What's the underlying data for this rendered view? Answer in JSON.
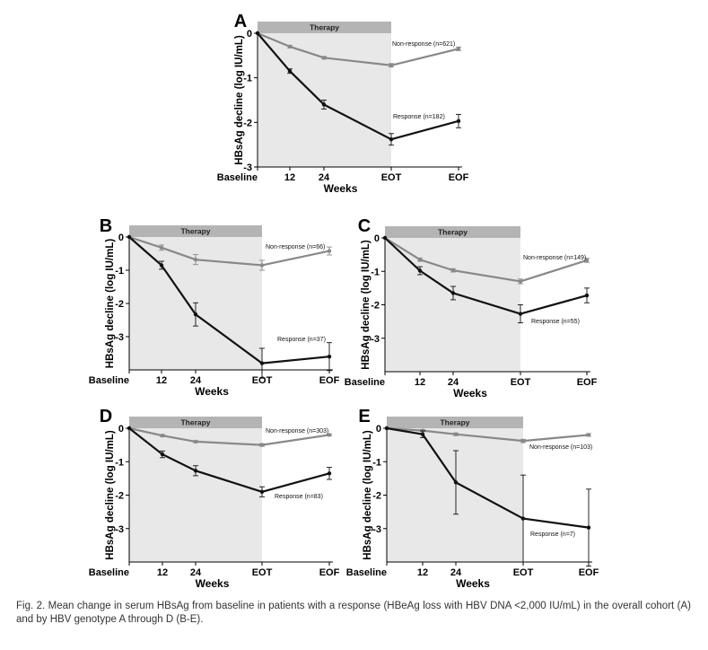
{
  "caption": "Fig. 2. Mean change in serum HBsAg from baseline in patients with a response (HBeAg loss with HBV DNA <2,000 IU/mL) in the overall cohort (A) and by HBV genotype A through D (B-E).",
  "colors": {
    "response": "#111111",
    "nonresponse": "#888888",
    "therapy_band": "#e8e8e8",
    "therapy_header": "#b4b4b4"
  },
  "chart_data": [
    {
      "type": "line",
      "panel": "A",
      "therapy_label": "Therapy",
      "x": [
        "Baseline",
        "12",
        "24",
        "EOT",
        "EOF"
      ],
      "xlabel": "Weeks",
      "ylabel": "HBsAg decline (log IU/mL)",
      "ylim": [
        -3,
        0
      ],
      "yticks": [
        "0",
        "-1",
        "-2",
        "-3"
      ],
      "series": [
        {
          "name": "Non-response (n=621)",
          "values": [
            0,
            -0.3,
            -0.55,
            -0.72,
            -0.35
          ],
          "err": [
            0,
            0.03,
            0.03,
            0.04,
            0.04
          ]
        },
        {
          "name": "Response (n=182)",
          "values": [
            0,
            -0.85,
            -1.6,
            -2.38,
            -1.97
          ],
          "err": [
            0,
            0.05,
            0.1,
            0.13,
            0.15
          ]
        }
      ]
    },
    {
      "type": "line",
      "panel": "B",
      "therapy_label": "Therapy",
      "x": [
        "Baseline",
        "12",
        "24",
        "EOT",
        "EOF"
      ],
      "xlabel": "Weeks",
      "ylabel": "HBsAg decline (log IU/mL)",
      "ylim": [
        -4,
        0
      ],
      "yticks": [
        "0",
        "-1",
        "-2",
        "-3"
      ],
      "series": [
        {
          "name": "Non-response (n=66)",
          "values": [
            0,
            -0.32,
            -0.68,
            -0.85,
            -0.42
          ],
          "err": [
            0,
            0.08,
            0.15,
            0.15,
            0.12
          ]
        },
        {
          "name": "Response (n=37)",
          "values": [
            0,
            -0.85,
            -2.33,
            -3.8,
            -3.6
          ],
          "err": [
            0,
            0.12,
            0.35,
            0.45,
            0.42
          ]
        }
      ]
    },
    {
      "type": "line",
      "panel": "C",
      "therapy_label": "Therapy",
      "x": [
        "Baseline",
        "12",
        "24",
        "EOT",
        "EOF"
      ],
      "xlabel": "Weeks",
      "ylabel": "HBsAg decline (log IU/mL)",
      "ylim": [
        -4,
        0
      ],
      "yticks": [
        "0",
        "-1",
        "-2",
        "-3"
      ],
      "series": [
        {
          "name": "Non-response (n=149)",
          "values": [
            0,
            -0.65,
            -0.97,
            -1.3,
            -0.67
          ],
          "err": [
            0,
            0.05,
            0.05,
            0.07,
            0.06
          ]
        },
        {
          "name": "Response (n=55)",
          "values": [
            0,
            -0.98,
            -1.65,
            -2.27,
            -1.72
          ],
          "err": [
            0,
            0.12,
            0.2,
            0.27,
            0.22
          ]
        }
      ]
    },
    {
      "type": "line",
      "panel": "D",
      "therapy_label": "Therapy",
      "x": [
        "Baseline",
        "12",
        "24",
        "EOT",
        "EOF"
      ],
      "xlabel": "Weeks",
      "ylabel": "HBsAg decline (log IU/mL)",
      "ylim": [
        -4,
        0
      ],
      "yticks": [
        "0",
        "-1",
        "-2",
        "-3"
      ],
      "series": [
        {
          "name": "Non-response (n=303)",
          "values": [
            0,
            -0.22,
            -0.4,
            -0.5,
            -0.2
          ],
          "err": [
            0,
            0.03,
            0.03,
            0.04,
            0.03
          ]
        },
        {
          "name": "Response (n=83)",
          "values": [
            0,
            -0.78,
            -1.27,
            -1.9,
            -1.35
          ],
          "err": [
            0,
            0.1,
            0.15,
            0.15,
            0.18
          ]
        }
      ]
    },
    {
      "type": "line",
      "panel": "E",
      "therapy_label": "Therapy",
      "x": [
        "Baseline",
        "12",
        "24",
        "EOT",
        "EOF"
      ],
      "xlabel": "Weeks",
      "ylabel": "HBsAg decline (log IU/mL)",
      "ylim": [
        -4,
        0
      ],
      "yticks": [
        "0",
        "-1",
        "-2",
        "-3"
      ],
      "series": [
        {
          "name": "Non-response (n=103)",
          "values": [
            0,
            -0.07,
            -0.18,
            -0.38,
            -0.2
          ],
          "err": [
            0,
            0.03,
            0.04,
            0.05,
            0.04
          ]
        },
        {
          "name": "Response (n=7)",
          "values": [
            0,
            -0.18,
            -1.62,
            -2.7,
            -2.97
          ],
          "err": [
            0,
            0.1,
            0.95,
            1.3,
            1.15
          ]
        }
      ]
    }
  ]
}
